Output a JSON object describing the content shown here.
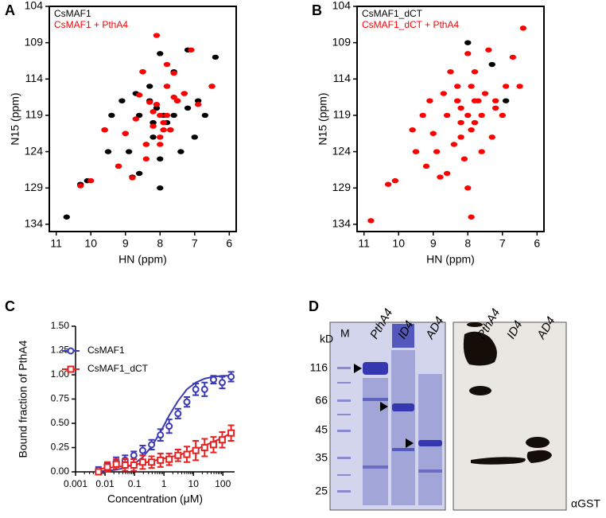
{
  "panel_labels": [
    "A",
    "B",
    "C",
    "D"
  ],
  "chart_data": [
    {
      "type": "scatter",
      "xlabel": "HN (ppm)",
      "ylabel": "N15 (ppm)",
      "xlim": [
        11.2,
        5.8
      ],
      "ylim": [
        135,
        104
      ],
      "xticks": [
        11,
        10,
        9,
        8,
        7,
        6
      ],
      "yticks": [
        104,
        109,
        114,
        119,
        124,
        129,
        134
      ],
      "series": [
        {
          "name": "CsMAF1",
          "color": "#000000",
          "x": [
            10.7,
            10.3,
            10.1,
            9.6,
            9.4,
            9.2,
            9.0,
            8.9,
            8.8,
            8.7,
            8.6,
            8.5,
            8.4,
            8.3,
            8.2,
            8.1,
            8.0,
            8.0,
            7.9,
            7.8,
            7.7,
            7.6,
            7.5,
            7.4,
            7.3,
            7.2,
            7.0,
            6.9,
            6.7,
            6.5,
            6.4,
            8.3,
            8.6,
            9.1,
            8.0,
            7.8,
            8.2,
            7.6,
            7.2,
            9.5
          ],
          "values": [
            133,
            128.5,
            128,
            121,
            119,
            126,
            121.5,
            124,
            127.5,
            116,
            119,
            113,
            123,
            117,
            120,
            118,
            125,
            110.5,
            119,
            115,
            121,
            113,
            117,
            124,
            116,
            110,
            122,
            117,
            119,
            115,
            111,
            115,
            127,
            117,
            129,
            120,
            122,
            119,
            118,
            124
          ]
        },
        {
          "name": "CsMAF1 + PthA4",
          "color": "#ff0000",
          "x": [
            10.3,
            10.0,
            9.6,
            9.2,
            9.0,
            8.8,
            8.6,
            8.5,
            8.4,
            8.3,
            8.2,
            8.2,
            8.1,
            8.0,
            8.0,
            7.9,
            7.9,
            7.8,
            7.7,
            7.6,
            7.5,
            7.3,
            7.1,
            6.9,
            6.5,
            8.1,
            7.8,
            8.4,
            8.7,
            8.0,
            7.8,
            7.6
          ],
          "values": [
            128.7,
            128,
            121,
            126,
            121.5,
            127.6,
            116.2,
            113,
            123,
            117.2,
            120.5,
            118.5,
            117.5,
            119,
            122,
            120,
            121,
            115,
            121,
            113.2,
            117,
            116,
            110,
            117.5,
            115,
            108,
            112,
            125,
            119.5,
            123,
            119,
            116.5
          ]
        }
      ]
    },
    {
      "type": "scatter",
      "xlabel": "HN (ppm)",
      "ylabel": "N15 (ppm)",
      "xlim": [
        11.2,
        5.8
      ],
      "ylim": [
        135,
        104
      ],
      "xticks": [
        11,
        10,
        9,
        8,
        7,
        6
      ],
      "yticks": [
        104,
        109,
        114,
        119,
        124,
        129,
        134
      ],
      "series": [
        {
          "name": "CsMAF1_dCT",
          "color": "#000000",
          "x": [
            7.3,
            8.0,
            6.9
          ],
          "values": [
            112,
            109,
            117
          ]
        },
        {
          "name": "CsMAF1_dCT + PthA4",
          "color": "#ff0000",
          "x": [
            10.8,
            10.3,
            10.1,
            9.6,
            9.5,
            9.3,
            9.2,
            9.0,
            8.9,
            8.8,
            8.7,
            8.6,
            8.5,
            8.4,
            8.3,
            8.2,
            8.2,
            8.1,
            8.0,
            8.0,
            7.9,
            7.9,
            7.8,
            7.8,
            7.7,
            7.6,
            7.5,
            7.4,
            7.3,
            7.2,
            7.0,
            6.9,
            6.7,
            6.5,
            6.4,
            8.3,
            8.6,
            9.1,
            8.0,
            7.8,
            8.2,
            7.6,
            7.2,
            9.5,
            7.9
          ],
          "values": [
            133.5,
            128.5,
            128,
            121,
            124,
            119,
            126,
            121.5,
            124,
            127.5,
            116,
            119,
            113,
            123,
            117,
            120,
            118,
            125,
            110.5,
            119,
            115,
            121,
            113,
            117,
            117,
            124,
            116,
            110,
            122,
            117,
            119,
            115,
            111,
            115,
            107,
            115,
            127,
            117,
            129,
            120,
            122,
            119,
            118,
            124,
            133
          ]
        }
      ]
    },
    {
      "type": "line",
      "xlabel": "Concentration (μM)",
      "ylabel": "Bound fraction of PthA4",
      "xscale": "log",
      "xlim": [
        0.001,
        250
      ],
      "ylim": [
        0,
        1.5
      ],
      "xticks": [
        0.001,
        0.01,
        0.1,
        1,
        10,
        100
      ],
      "yticks": [
        {
          "value": 0,
          "label": "0.00"
        },
        {
          "value": 0.25,
          "label": "0.25"
        },
        {
          "value": 0.5,
          "label": "0.50"
        },
        {
          "value": 0.75,
          "label": "0.75"
        },
        {
          "value": 1,
          "label": "1.00"
        },
        {
          "value": 1.25,
          "label": "1.25"
        },
        {
          "value": 1.5,
          "label": "1.50"
        }
      ],
      "x": [
        0.006,
        0.012,
        0.024,
        0.048,
        0.095,
        0.19,
        0.38,
        0.76,
        1.5,
        3,
        6,
        12,
        24,
        48,
        95,
        190
      ],
      "series": [
        {
          "name": "CsMAF1",
          "color": "#3a3ab8",
          "marker": "circle",
          "values": [
            0.02,
            0.05,
            0.1,
            0.12,
            0.17,
            0.22,
            0.28,
            0.38,
            0.47,
            0.6,
            0.72,
            0.85,
            0.85,
            0.95,
            0.92,
            0.98
          ],
          "errors": [
            0.03,
            0.04,
            0.05,
            0.05,
            0.04,
            0.05,
            0.05,
            0.06,
            0.07,
            0.05,
            0.05,
            0.06,
            0.07,
            0.04,
            0.06,
            0.05
          ],
          "fit": [
            0.005,
            0.011,
            0.021,
            0.042,
            0.08,
            0.15,
            0.26,
            0.41,
            0.58,
            0.73,
            0.85,
            0.92,
            0.96,
            0.98,
            0.99,
            0.99
          ]
        },
        {
          "name": "CsMAF1_dCT",
          "color": "#e82020",
          "marker": "square",
          "values": [
            0.0,
            0.05,
            0.08,
            0.07,
            0.07,
            0.1,
            0.1,
            0.12,
            0.13,
            0.17,
            0.18,
            0.22,
            0.25,
            0.28,
            0.33,
            0.4
          ],
          "errors": [
            0.02,
            0.05,
            0.05,
            0.06,
            0.06,
            0.07,
            0.06,
            0.07,
            0.06,
            0.06,
            0.08,
            0.1,
            0.09,
            0.08,
            0.08,
            0.08
          ],
          "fit": [
            0.03,
            0.04,
            0.05,
            0.06,
            0.07,
            0.09,
            0.11,
            0.13,
            0.15,
            0.17,
            0.2,
            0.23,
            0.27,
            0.31,
            0.35,
            0.4
          ]
        }
      ]
    }
  ],
  "gel": {
    "unit": "kD",
    "markers": [
      "116",
      "66",
      "45",
      "35",
      "25"
    ],
    "ladder": "M",
    "lanes": [
      "PthA4",
      "ID4",
      "AD4"
    ],
    "blot_lanes": [
      "PthA4",
      "ID4",
      "AD4"
    ],
    "blot_label": "αGST"
  }
}
